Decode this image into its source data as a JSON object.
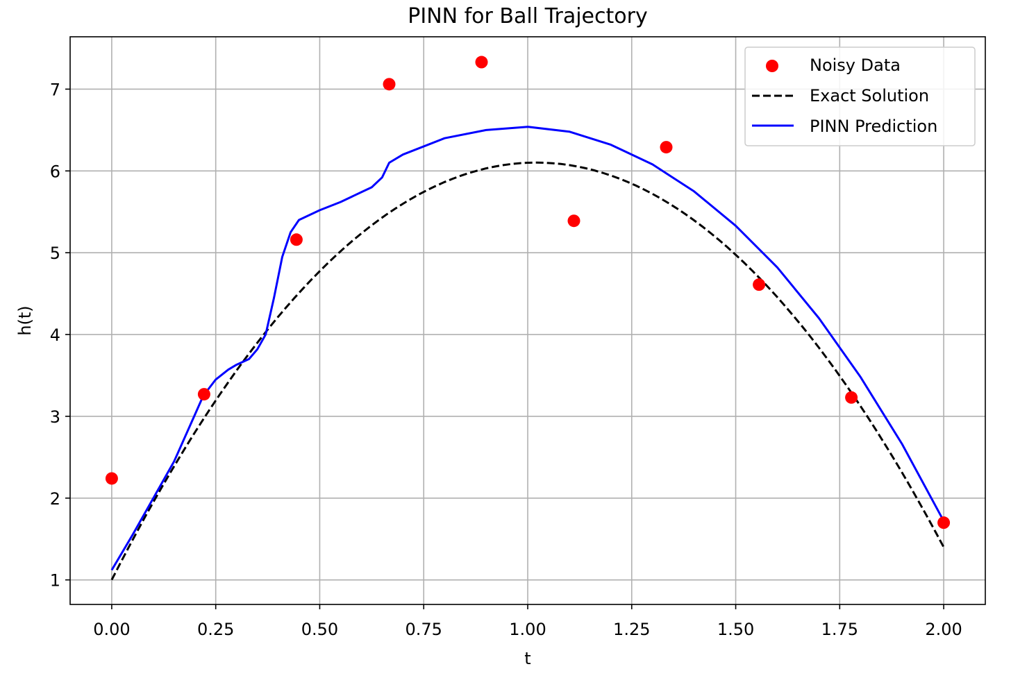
{
  "chart_data": {
    "type": "line",
    "title": "PINN for Ball Trajectory",
    "xlabel": "t",
    "ylabel": "h(t)",
    "xlim": [
      -0.1,
      2.1
    ],
    "ylim": [
      0.7,
      7.64
    ],
    "x_ticks": [
      0.0,
      0.25,
      0.5,
      0.75,
      1.0,
      1.25,
      1.5,
      1.75,
      2.0
    ],
    "x_tick_labels": [
      "0.00",
      "0.25",
      "0.50",
      "0.75",
      "1.00",
      "1.25",
      "1.50",
      "1.75",
      "2.00"
    ],
    "y_ticks": [
      1,
      2,
      3,
      4,
      5,
      6,
      7
    ],
    "y_tick_labels": [
      "1",
      "2",
      "3",
      "4",
      "5",
      "6",
      "7"
    ],
    "grid": true,
    "legend_position": "top-right",
    "series": [
      {
        "name": "Noisy Data",
        "kind": "scatter",
        "color": "#ff0000",
        "points": [
          [
            0.0,
            2.24
          ],
          [
            0.222,
            3.27
          ],
          [
            0.444,
            5.16
          ],
          [
            0.667,
            7.06
          ],
          [
            0.889,
            7.33
          ],
          [
            1.111,
            5.39
          ],
          [
            1.333,
            6.29
          ],
          [
            1.556,
            4.61
          ],
          [
            1.778,
            3.23
          ],
          [
            2.0,
            1.7
          ]
        ]
      },
      {
        "name": "Exact Solution",
        "kind": "line",
        "style": "dashed",
        "color": "#000000",
        "equation": "h(t) = 1 + 10 t - 4.9 t^2",
        "t_range": [
          0,
          2
        ]
      },
      {
        "name": "PINN Prediction",
        "kind": "line",
        "style": "solid",
        "color": "#0000ff",
        "points": [
          [
            0.0,
            1.12
          ],
          [
            0.05,
            1.55
          ],
          [
            0.1,
            2.0
          ],
          [
            0.15,
            2.45
          ],
          [
            0.2,
            3.02
          ],
          [
            0.22,
            3.25
          ],
          [
            0.25,
            3.45
          ],
          [
            0.28,
            3.57
          ],
          [
            0.3,
            3.63
          ],
          [
            0.33,
            3.7
          ],
          [
            0.35,
            3.82
          ],
          [
            0.37,
            4.0
          ],
          [
            0.39,
            4.45
          ],
          [
            0.41,
            4.95
          ],
          [
            0.43,
            5.25
          ],
          [
            0.45,
            5.4
          ],
          [
            0.5,
            5.52
          ],
          [
            0.55,
            5.62
          ],
          [
            0.6,
            5.74
          ],
          [
            0.625,
            5.8
          ],
          [
            0.65,
            5.92
          ],
          [
            0.667,
            6.1
          ],
          [
            0.7,
            6.2
          ],
          [
            0.8,
            6.4
          ],
          [
            0.9,
            6.5
          ],
          [
            1.0,
            6.54
          ],
          [
            1.1,
            6.48
          ],
          [
            1.2,
            6.32
          ],
          [
            1.3,
            6.08
          ],
          [
            1.4,
            5.75
          ],
          [
            1.5,
            5.33
          ],
          [
            1.6,
            4.82
          ],
          [
            1.7,
            4.2
          ],
          [
            1.8,
            3.48
          ],
          [
            1.9,
            2.66
          ],
          [
            2.0,
            1.72
          ]
        ]
      }
    ]
  }
}
